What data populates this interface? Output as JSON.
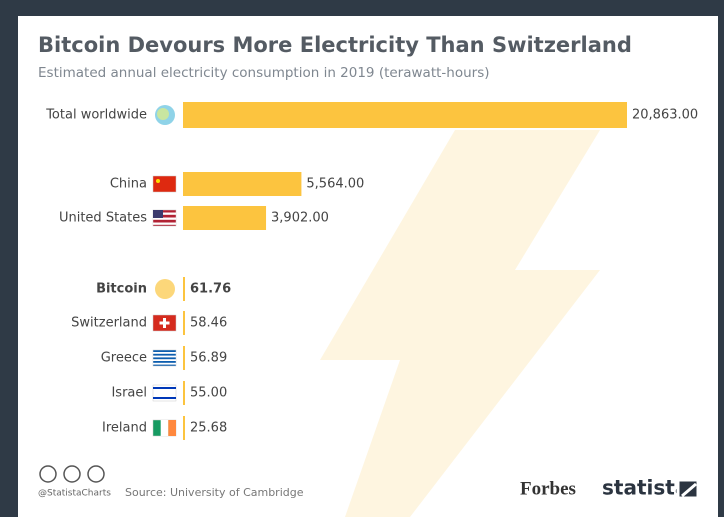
{
  "chart_data": {
    "type": "bar",
    "orientation": "horizontal",
    "title": "Bitcoin Devours More Electricity Than Switzerland",
    "subtitle": "Estimated annual electricity consumption in 2019 (terawatt-hours)",
    "categories": [
      "Total worldwide",
      "China",
      "United States",
      "Bitcoin",
      "Switzerland",
      "Greece",
      "Israel",
      "Ireland"
    ],
    "values": [
      20863,
      5564,
      3902,
      61.76,
      58.46,
      56.89,
      55,
      25.68
    ],
    "value_labels": [
      "20,863.00",
      "5,564.00",
      "3,902.00",
      "61.76",
      "58.46",
      "56.89",
      "55.00",
      "25.68"
    ],
    "color": "#fcc43f",
    "handle": "@StatistaCharts",
    "source": "Source: University of Cambridge",
    "brands": [
      "Forbes",
      "statista"
    ]
  }
}
